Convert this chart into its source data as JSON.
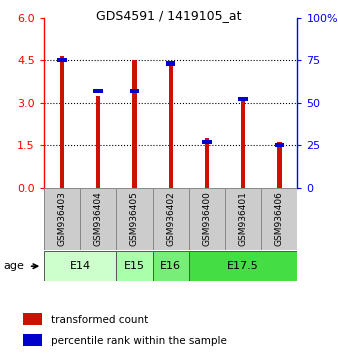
{
  "title": "GDS4591 / 1419105_at",
  "samples": [
    "GSM936403",
    "GSM936404",
    "GSM936405",
    "GSM936402",
    "GSM936400",
    "GSM936401",
    "GSM936406"
  ],
  "transformed_counts": [
    4.65,
    3.25,
    4.5,
    4.45,
    1.75,
    3.1,
    1.6
  ],
  "percentile_ranks_pct": [
    75,
    57,
    57,
    73,
    27,
    52,
    25
  ],
  "age_groups": [
    {
      "label": "E14",
      "start": 0,
      "end": 1,
      "color": "#ccffcc"
    },
    {
      "label": "E15",
      "start": 2,
      "end": 2,
      "color": "#aaffaa"
    },
    {
      "label": "E16",
      "start": 3,
      "end": 3,
      "color": "#77ee77"
    },
    {
      "label": "E17.5",
      "start": 4,
      "end": 6,
      "color": "#44dd44"
    }
  ],
  "ylim_left": [
    0,
    6
  ],
  "ylim_right": [
    0,
    100
  ],
  "yticks_left": [
    0,
    1.5,
    3.0,
    4.5,
    6
  ],
  "yticks_right": [
    0,
    25,
    50,
    75,
    100
  ],
  "bar_color_red": "#cc1100",
  "bar_color_blue": "#0000cc",
  "background_color": "#ffffff",
  "label_red": "transformed count",
  "label_blue": "percentile rank within the sample",
  "gray_box_color": "#cccccc",
  "age_colors": [
    "#ccffcc",
    "#aaffaa",
    "#77ee77",
    "#44dd44"
  ]
}
